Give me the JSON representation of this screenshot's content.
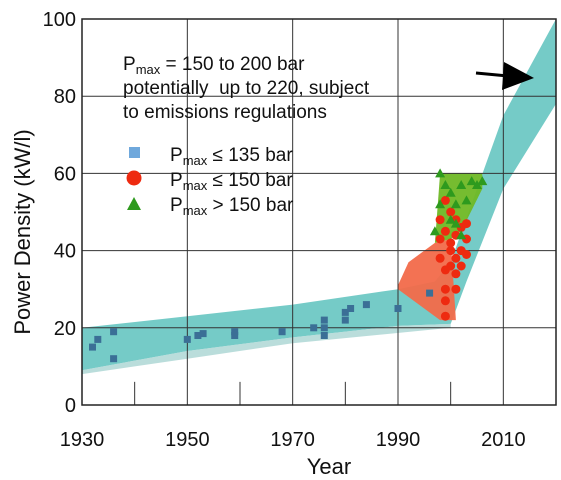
{
  "chart_data": {
    "type": "scatter",
    "xlabel": "Year",
    "ylabel": "Power Density (kW/l)",
    "xlim": [
      1930,
      2020
    ],
    "ylim": [
      0,
      100
    ],
    "x_ticks": [
      1930,
      1950,
      1970,
      1990,
      2010
    ],
    "y_ticks": [
      0,
      20,
      40,
      60,
      80,
      100
    ],
    "grid": true,
    "colors": {
      "band": "#6ec8c4",
      "band_lower": "#9ccfcc",
      "blue": "#3b6f96",
      "blue_legend": "#6fa8dc",
      "red": "#ee2a10",
      "red_area": "#f26a4a",
      "green": "#2e9a1e",
      "green_area": "#6fb825"
    },
    "annotation": {
      "line1_main": "P",
      "line1_sub": "max",
      "line1_rest": " = 150 to 200 bar",
      "line2": "potentially  up to 220, subject",
      "line3": "to emissions regulations"
    },
    "legend": [
      {
        "main": "P",
        "sub": "max",
        "rest": " ≤ 135 bar",
        "marker": "square"
      },
      {
        "main": "P",
        "sub": "max",
        "rest": " ≤ 150 bar",
        "marker": "circle"
      },
      {
        "main": "P",
        "sub": "max",
        "rest": " > 150 bar",
        "marker": "triangle"
      }
    ],
    "series": [
      {
        "marker": "square",
        "points": [
          [
            1932,
            15
          ],
          [
            1933,
            17
          ],
          [
            1936,
            19
          ],
          [
            1936,
            12
          ],
          [
            1950,
            17
          ],
          [
            1952,
            18
          ],
          [
            1953,
            18.5
          ],
          [
            1959,
            19
          ],
          [
            1959,
            18
          ],
          [
            1968,
            19
          ],
          [
            1974,
            20
          ],
          [
            1976,
            18
          ],
          [
            1976,
            20
          ],
          [
            1976,
            22
          ],
          [
            1980,
            22
          ],
          [
            1980,
            24
          ],
          [
            1981,
            25
          ],
          [
            1984,
            26
          ],
          [
            1990,
            25
          ],
          [
            1996,
            29
          ]
        ]
      },
      {
        "marker": "circle",
        "points": [
          [
            1998,
            48
          ],
          [
            1998,
            43
          ],
          [
            1998,
            38
          ],
          [
            1999,
            53
          ],
          [
            1999,
            45
          ],
          [
            1999,
            35
          ],
          [
            1999,
            30
          ],
          [
            1999,
            27
          ],
          [
            1999,
            23
          ],
          [
            2000,
            50
          ],
          [
            2000,
            42
          ],
          [
            2000,
            40
          ],
          [
            2000,
            36
          ],
          [
            2001,
            48
          ],
          [
            2001,
            44
          ],
          [
            2001,
            38
          ],
          [
            2001,
            34
          ],
          [
            2001,
            30
          ],
          [
            2002,
            46
          ],
          [
            2002,
            40
          ],
          [
            2002,
            36
          ],
          [
            2003,
            47
          ],
          [
            2003,
            43
          ],
          [
            2003,
            39
          ]
        ]
      },
      {
        "marker": "triangle",
        "points": [
          [
            1997,
            45
          ],
          [
            1998,
            60
          ],
          [
            1998,
            52
          ],
          [
            1999,
            57
          ],
          [
            2000,
            55
          ],
          [
            2000,
            48
          ],
          [
            2001,
            52
          ],
          [
            2001,
            47
          ],
          [
            2002,
            57
          ],
          [
            2002,
            44
          ],
          [
            2003,
            53
          ],
          [
            2004,
            58
          ],
          [
            2005,
            57
          ],
          [
            2006,
            58
          ]
        ]
      }
    ]
  }
}
